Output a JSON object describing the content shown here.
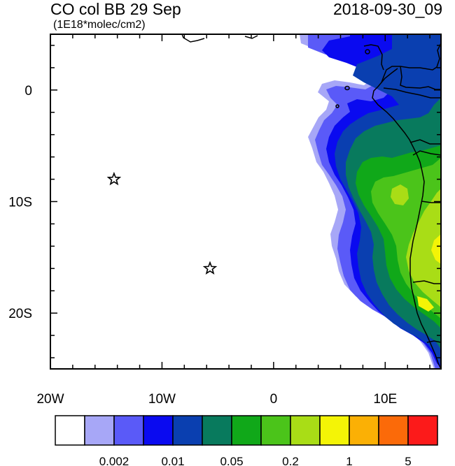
{
  "header": {
    "title": "CO col BB 29 Sep",
    "units": "(1E18*molec/cm2)",
    "datetime": "2018-09-30_09"
  },
  "map": {
    "lon_range": [
      -20,
      15
    ],
    "lat_range": [
      -25,
      5
    ],
    "x_ticks": [
      {
        "value": -20,
        "label": "20W"
      },
      {
        "value": -10,
        "label": "10W"
      },
      {
        "value": 0,
        "label": "0"
      },
      {
        "value": 10,
        "label": "10E"
      }
    ],
    "y_ticks": [
      {
        "value": 0,
        "label": "0"
      },
      {
        "value": -10,
        "label": "10S"
      },
      {
        "value": -20,
        "label": "20S"
      }
    ],
    "markers": [
      {
        "name": "star",
        "lon": -14.3,
        "lat": -8.0
      },
      {
        "name": "star",
        "lon": -5.7,
        "lat": -16.0
      }
    ]
  },
  "colorbar": {
    "colors": [
      "#ffffff",
      "#a7a7f7",
      "#5a5af8",
      "#0a0af0",
      "#0a3fb0",
      "#087a5d",
      "#10a819",
      "#4bc41a",
      "#a9dd16",
      "#f4f406",
      "#fbb005",
      "#fb6a09",
      "#fc1a1a"
    ],
    "labels": [
      "0.002",
      "0.01",
      "0.05",
      "0.2",
      "1",
      "5"
    ]
  }
}
